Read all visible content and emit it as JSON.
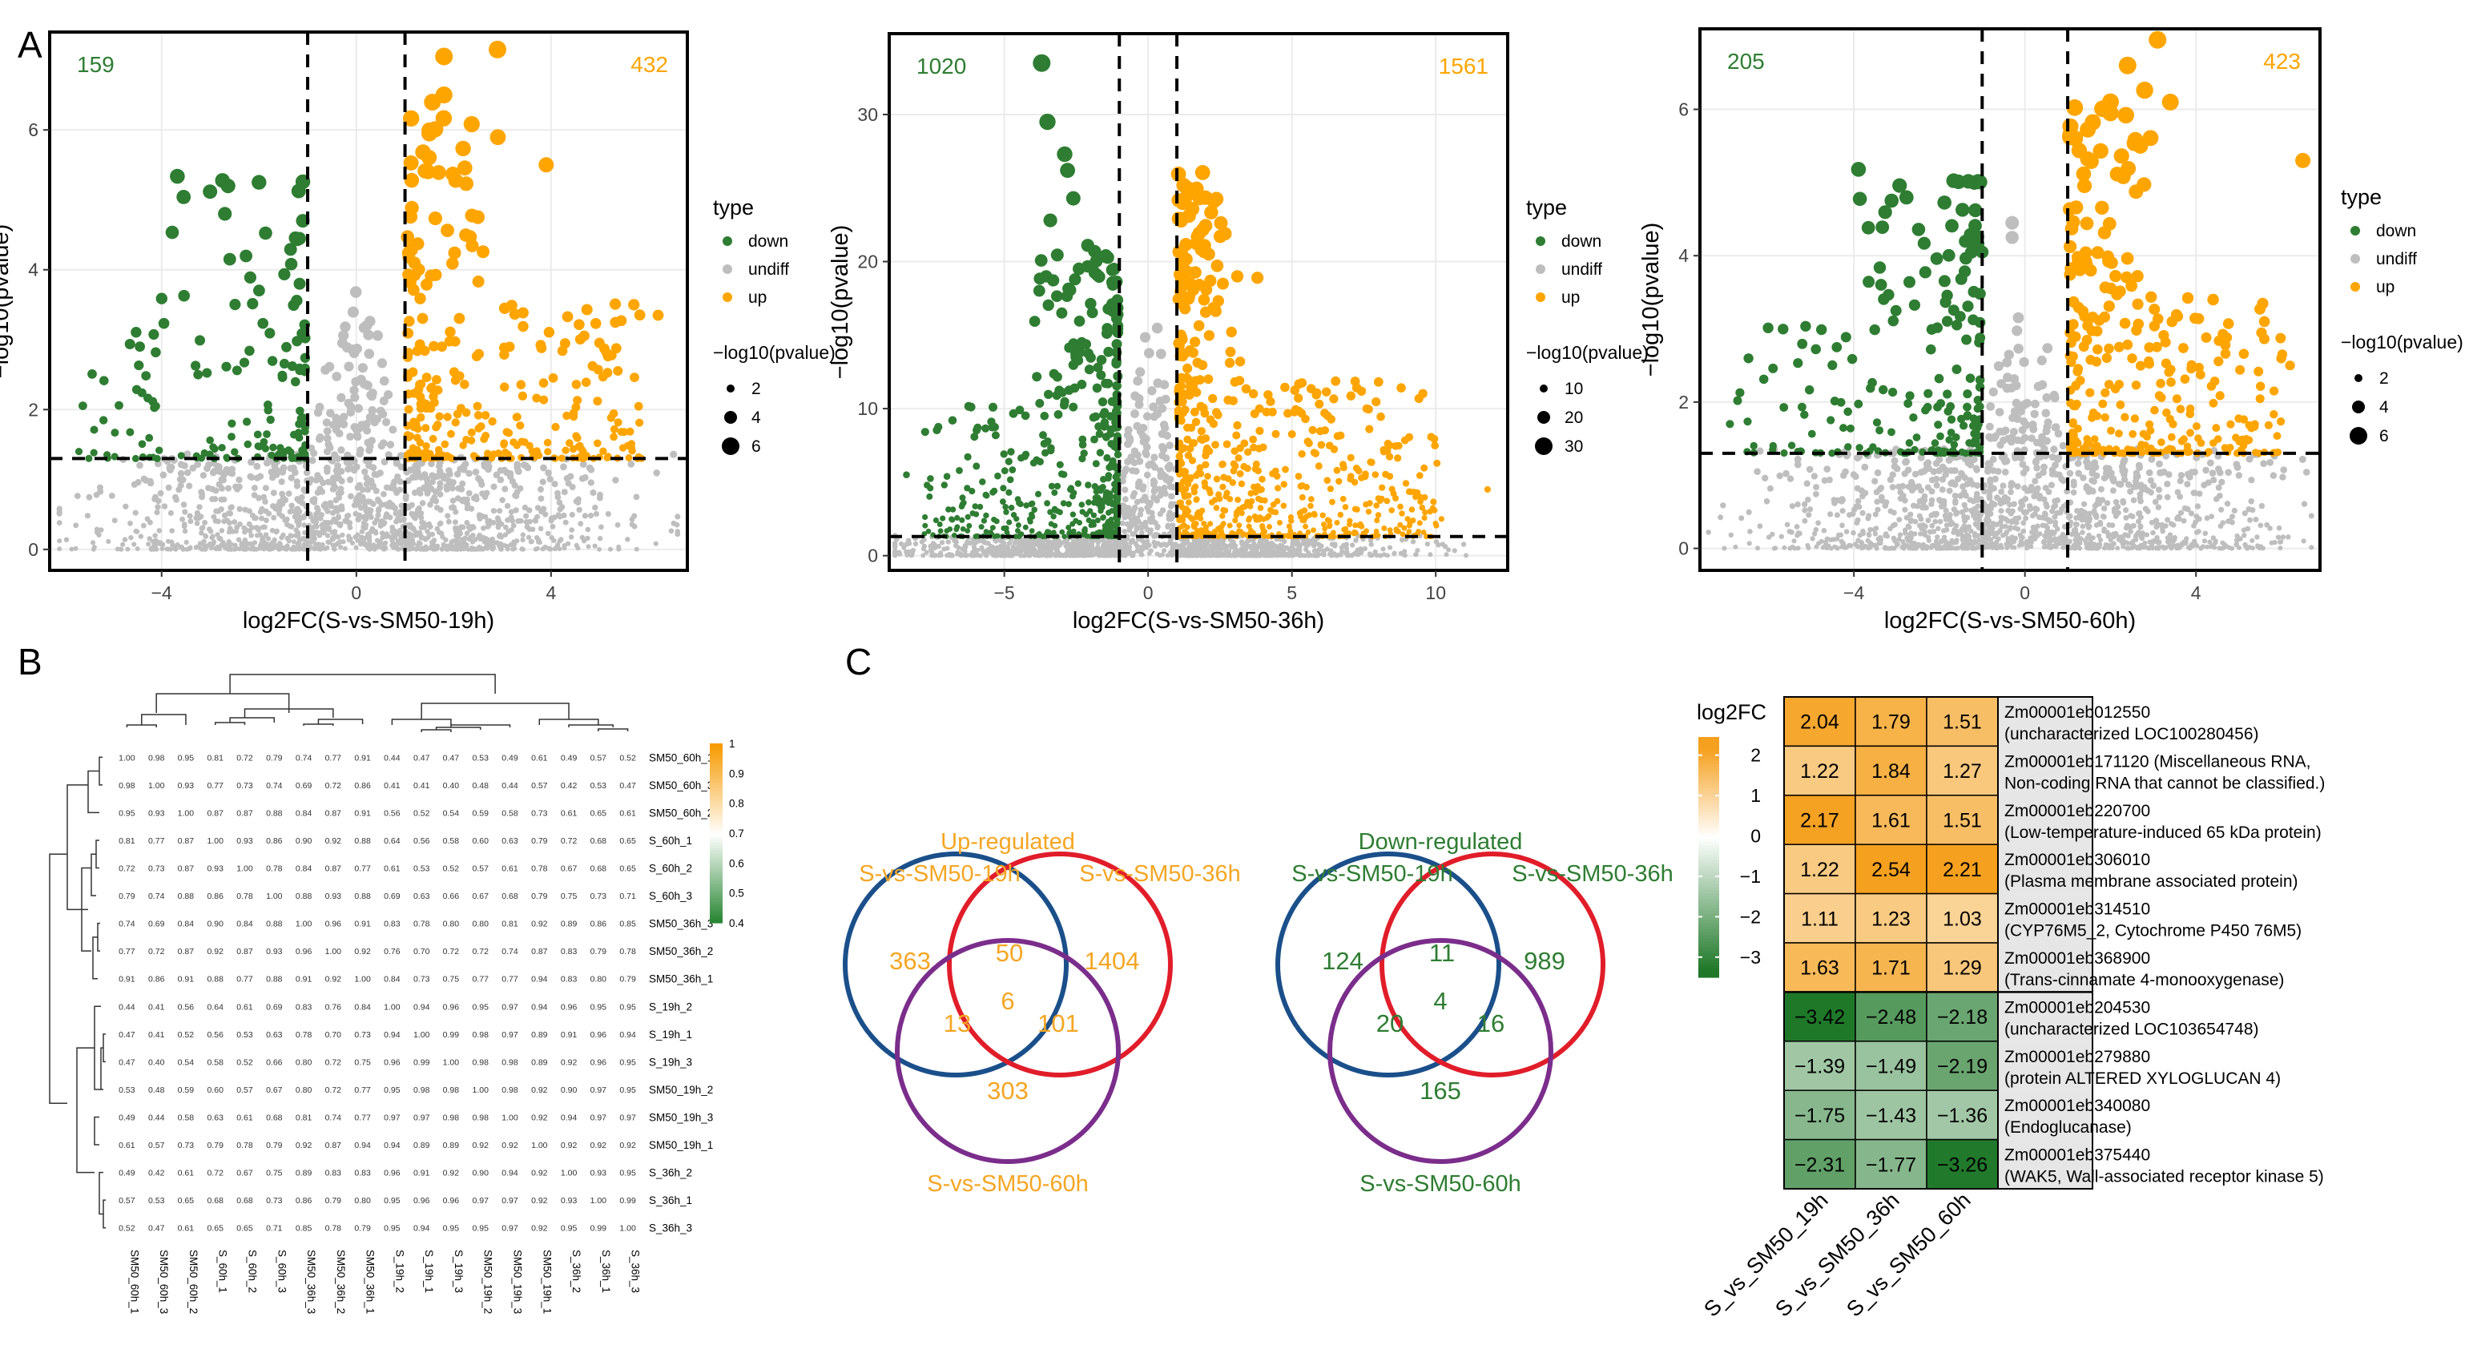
{
  "panel_labels": [
    "A",
    "B",
    "C"
  ],
  "colors": {
    "down": "#2e7d32",
    "undiff": "#bebebe",
    "up": "#ffa500",
    "venn_blue": "#1a4f8a",
    "venn_red": "#e11d2a",
    "venn_purple": "#7b2d8b",
    "up_text": "#f5a623",
    "down_text": "#2e7d32"
  },
  "chart_data": [
    {
      "type": "scatter",
      "id": "volcano_19h",
      "xlabel": "log2FC(S-vs-SM50-19h)",
      "ylabel": "−log10(pvalue)",
      "xlim": [
        -6.3,
        6.8
      ],
      "ylim": [
        -0.3,
        7.4
      ],
      "xticks": [
        -4,
        0,
        4
      ],
      "yticks": [
        0,
        2,
        4,
        6
      ],
      "xtick_labels": [
        "−4",
        "0",
        "4"
      ],
      "ytick_labels": [
        "0",
        "2",
        "4",
        "6"
      ],
      "down_count": "159",
      "up_count": "432",
      "fc_threshold": [
        -1,
        1
      ],
      "p_threshold": 1.3,
      "legend": {
        "type_title": "type",
        "types": [
          "down",
          "undiff",
          "up"
        ],
        "size_title": "−log10(pvalue)",
        "sizes": [
          "2",
          "4",
          "6"
        ]
      },
      "seed": 11,
      "n_down": 160,
      "n_up": 300,
      "n_grey": 1500,
      "highlights": [
        {
          "x": 2.9,
          "y": 7.15,
          "t": "up"
        },
        {
          "x": 1.8,
          "y": 7.05,
          "t": "up"
        },
        {
          "x": 1.8,
          "y": 6.5,
          "t": "up"
        },
        {
          "x": 3.9,
          "y": 5.5,
          "t": "up"
        },
        {
          "x": 1.5,
          "y": 5.95,
          "t": "up"
        },
        {
          "x": 5.7,
          "y": 3.5,
          "t": "up"
        },
        {
          "x": 6.2,
          "y": 3.35,
          "t": "up"
        },
        {
          "x": -2.0,
          "y": 5.25,
          "t": "down"
        },
        {
          "x": -1.1,
          "y": 4.7,
          "t": "down"
        },
        {
          "x": -2.7,
          "y": 4.8,
          "t": "down"
        },
        {
          "x": -2.6,
          "y": 4.15,
          "t": "down"
        },
        {
          "x": -5.7,
          "y": 1.4,
          "t": "down"
        }
      ]
    },
    {
      "type": "scatter",
      "id": "volcano_36h",
      "xlabel": "log2FC(S-vs-SM50-36h)",
      "ylabel": "−log10(pvalue)",
      "xlim": [
        -9,
        12.5
      ],
      "ylim": [
        -1,
        35.5
      ],
      "xticks": [
        -5,
        0,
        5,
        10
      ],
      "yticks": [
        0,
        10,
        20,
        30
      ],
      "xtick_labels": [
        "−5",
        "0",
        "5",
        "10"
      ],
      "ytick_labels": [
        "0",
        "10",
        "20",
        "30"
      ],
      "down_count": "1020",
      "up_count": "1561",
      "fc_threshold": [
        -1,
        1
      ],
      "p_threshold": 1.3,
      "legend": {
        "type_title": "type",
        "types": [
          "down",
          "undiff",
          "up"
        ],
        "size_title": "−log10(pvalue)",
        "sizes": [
          "10",
          "20",
          "30"
        ]
      },
      "seed": 23,
      "n_down": 500,
      "n_up": 650,
      "n_grey": 1500,
      "highlights": [
        {
          "x": -3.7,
          "y": 33.5,
          "t": "down"
        },
        {
          "x": -3.5,
          "y": 29.5,
          "t": "down"
        },
        {
          "x": -2.9,
          "y": 27.3,
          "t": "down"
        },
        {
          "x": -2.8,
          "y": 26.2,
          "t": "down"
        },
        {
          "x": -3.4,
          "y": 22.8,
          "t": "down"
        },
        {
          "x": -2.6,
          "y": 24.3,
          "t": "down"
        },
        {
          "x": -2.1,
          "y": 21.1,
          "t": "down"
        },
        {
          "x": -3.0,
          "y": 16.5,
          "t": "down"
        },
        {
          "x": -6.8,
          "y": 9.2,
          "t": "down"
        },
        {
          "x": -8.4,
          "y": 5.5,
          "t": "down"
        },
        {
          "x": 3.1,
          "y": 19.0,
          "t": "up"
        },
        {
          "x": 3.8,
          "y": 18.9,
          "t": "up"
        },
        {
          "x": 2.6,
          "y": 18.5,
          "t": "up"
        },
        {
          "x": 8.4,
          "y": 7.5,
          "t": "up"
        },
        {
          "x": 11.8,
          "y": 4.5,
          "t": "up"
        },
        {
          "x": 10.2,
          "y": 2.5,
          "t": "up"
        },
        {
          "x": 9.8,
          "y": 3.0,
          "t": "up"
        },
        {
          "x": 7.6,
          "y": 10.0,
          "t": "up"
        },
        {
          "x": 3.2,
          "y": 13.2,
          "t": "up"
        }
      ]
    },
    {
      "type": "scatter",
      "id": "volcano_60h",
      "xlabel": "log2FC(S-vs-SM50-60h)",
      "ylabel": "−log10(pvalue)",
      "xlim": [
        -7.6,
        6.9
      ],
      "ylim": [
        -0.3,
        7.1
      ],
      "xticks": [
        -4,
        0,
        4
      ],
      "yticks": [
        0,
        2,
        4,
        6
      ],
      "xtick_labels": [
        "−4",
        "0",
        "4"
      ],
      "ytick_labels": [
        "0",
        "2",
        "4",
        "6"
      ],
      "down_count": "205",
      "up_count": "423",
      "fc_threshold": [
        -1,
        1
      ],
      "p_threshold": 1.3,
      "legend": {
        "type_title": "type",
        "types": [
          "down",
          "undiff",
          "up"
        ],
        "size_title": "−log10(pvalue)",
        "sizes": [
          "2",
          "4",
          "6"
        ]
      },
      "seed": 37,
      "n_down": 200,
      "n_up": 320,
      "n_grey": 1500,
      "highlights": [
        {
          "x": 3.1,
          "y": 6.95,
          "t": "up"
        },
        {
          "x": 2.4,
          "y": 6.6,
          "t": "up"
        },
        {
          "x": 3.4,
          "y": 6.1,
          "t": "up"
        },
        {
          "x": 2.7,
          "y": 5.5,
          "t": "up"
        },
        {
          "x": 2.0,
          "y": 5.95,
          "t": "up"
        },
        {
          "x": 6.5,
          "y": 5.3,
          "t": "up"
        },
        {
          "x": 4.4,
          "y": 3.4,
          "t": "up"
        },
        {
          "x": 5.6,
          "y": 3.1,
          "t": "up"
        },
        {
          "x": 6.2,
          "y": 2.5,
          "t": "up"
        },
        {
          "x": -0.3,
          "y": 4.45,
          "t": "undiff"
        },
        {
          "x": -0.3,
          "y": 4.25,
          "t": "undiff"
        },
        {
          "x": -6.9,
          "y": 1.7,
          "t": "down"
        },
        {
          "x": -4.4,
          "y": 2.75,
          "t": "down"
        },
        {
          "x": -1.0,
          "y": 4.05,
          "t": "down"
        }
      ]
    },
    {
      "type": "heatmap",
      "id": "correlation",
      "samples": [
        "SM50_60h_1",
        "SM50_60h_3",
        "SM50_60h_2",
        "S_60h_1",
        "S_60h_2",
        "S_60h_3",
        "SM50_36h_3",
        "SM50_36h_2",
        "SM50_36h_1",
        "S_19h_2",
        "S_19h_1",
        "S_19h_3",
        "SM50_19h_2",
        "SM50_19h_3",
        "SM50_19h_1",
        "S_36h_2",
        "S_36h_1",
        "S_36h_3"
      ],
      "values": [
        [
          1.0,
          0.98,
          0.95,
          0.81,
          0.72,
          0.79,
          0.74,
          0.77,
          0.91,
          0.44,
          0.47,
          0.47,
          0.53,
          0.49,
          0.61,
          0.49,
          0.57,
          0.52
        ],
        [
          0.98,
          1.0,
          0.93,
          0.77,
          0.73,
          0.74,
          0.69,
          0.72,
          0.86,
          0.41,
          0.41,
          0.4,
          0.48,
          0.44,
          0.57,
          0.42,
          0.53,
          0.47
        ],
        [
          0.95,
          0.93,
          1.0,
          0.87,
          0.87,
          0.88,
          0.84,
          0.87,
          0.91,
          0.56,
          0.52,
          0.54,
          0.59,
          0.58,
          0.73,
          0.61,
          0.65,
          0.61
        ],
        [
          0.81,
          0.77,
          0.87,
          1.0,
          0.93,
          0.86,
          0.9,
          0.92,
          0.88,
          0.64,
          0.56,
          0.58,
          0.6,
          0.63,
          0.79,
          0.72,
          0.68,
          0.65
        ],
        [
          0.72,
          0.73,
          0.87,
          0.93,
          1.0,
          0.78,
          0.84,
          0.87,
          0.77,
          0.61,
          0.53,
          0.52,
          0.57,
          0.61,
          0.78,
          0.67,
          0.68,
          0.65
        ],
        [
          0.79,
          0.74,
          0.88,
          0.86,
          0.78,
          1.0,
          0.88,
          0.93,
          0.88,
          0.69,
          0.63,
          0.66,
          0.67,
          0.68,
          0.79,
          0.75,
          0.73,
          0.71
        ],
        [
          0.74,
          0.69,
          0.84,
          0.9,
          0.84,
          0.88,
          1.0,
          0.96,
          0.91,
          0.83,
          0.78,
          0.8,
          0.8,
          0.81,
          0.92,
          0.89,
          0.86,
          0.85
        ],
        [
          0.77,
          0.72,
          0.87,
          0.92,
          0.87,
          0.93,
          0.96,
          1.0,
          0.92,
          0.76,
          0.7,
          0.72,
          0.72,
          0.74,
          0.87,
          0.83,
          0.79,
          0.78
        ],
        [
          0.91,
          0.86,
          0.91,
          0.88,
          0.77,
          0.88,
          0.91,
          0.92,
          1.0,
          0.84,
          0.73,
          0.75,
          0.77,
          0.77,
          0.94,
          0.83,
          0.8,
          0.79
        ],
        [
          0.44,
          0.41,
          0.56,
          0.64,
          0.61,
          0.69,
          0.83,
          0.76,
          0.84,
          1.0,
          0.94,
          0.96,
          0.95,
          0.97,
          0.94,
          0.96,
          0.95,
          0.95
        ],
        [
          0.47,
          0.41,
          0.52,
          0.56,
          0.53,
          0.63,
          0.78,
          0.7,
          0.73,
          0.94,
          1.0,
          0.99,
          0.98,
          0.97,
          0.89,
          0.91,
          0.96,
          0.94
        ],
        [
          0.47,
          0.4,
          0.54,
          0.58,
          0.52,
          0.66,
          0.8,
          0.72,
          0.75,
          0.96,
          0.99,
          1.0,
          0.98,
          0.98,
          0.89,
          0.92,
          0.96,
          0.95
        ],
        [
          0.53,
          0.48,
          0.59,
          0.6,
          0.57,
          0.67,
          0.8,
          0.72,
          0.77,
          0.95,
          0.98,
          0.98,
          1.0,
          0.98,
          0.92,
          0.9,
          0.97,
          0.95
        ],
        [
          0.49,
          0.44,
          0.58,
          0.63,
          0.61,
          0.68,
          0.81,
          0.74,
          0.77,
          0.97,
          0.97,
          0.98,
          0.98,
          1.0,
          0.92,
          0.94,
          0.97,
          0.97
        ],
        [
          0.61,
          0.57,
          0.73,
          0.79,
          0.78,
          0.79,
          0.92,
          0.87,
          0.94,
          0.94,
          0.89,
          0.89,
          0.92,
          0.92,
          1.0,
          0.92,
          0.92,
          0.92
        ],
        [
          0.49,
          0.42,
          0.61,
          0.72,
          0.67,
          0.75,
          0.89,
          0.83,
          0.83,
          0.96,
          0.91,
          0.92,
          0.9,
          0.94,
          0.92,
          1.0,
          0.93,
          0.95
        ],
        [
          0.57,
          0.53,
          0.65,
          0.68,
          0.68,
          0.73,
          0.86,
          0.79,
          0.8,
          0.95,
          0.96,
          0.96,
          0.97,
          0.97,
          0.92,
          0.93,
          1.0,
          0.99
        ],
        [
          0.52,
          0.47,
          0.61,
          0.65,
          0.65,
          0.71,
          0.85,
          0.78,
          0.79,
          0.95,
          0.94,
          0.95,
          0.95,
          0.97,
          0.92,
          0.95,
          0.99,
          1.0
        ]
      ],
      "colorbar_ticks": [
        "1",
        "0.9",
        "0.8",
        "0.7",
        "0.6",
        "0.5",
        "0.4"
      ],
      "colorbar_values": [
        1,
        0.9,
        0.8,
        0.7,
        0.6,
        0.5,
        0.4
      ]
    },
    {
      "type": "venn",
      "id": "venn_up",
      "title": "Up-regulated",
      "labels": [
        "S-vs-SM50-19h",
        "S-vs-SM50-36h",
        "S-vs-SM50-60h"
      ],
      "counts": {
        "a": "363",
        "ab": "50",
        "b": "1404",
        "ac": "13",
        "abc": "6",
        "bc": "101",
        "c": "303"
      }
    },
    {
      "type": "venn",
      "id": "venn_down",
      "title": "Down-regulated",
      "labels": [
        "S-vs-SM50-19h",
        "S-vs-SM50-36h",
        "S-vs-SM50-60h"
      ],
      "counts": {
        "a": "124",
        "ab": "11",
        "b": "989",
        "ac": "20",
        "abc": "4",
        "bc": "16",
        "c": "165"
      }
    },
    {
      "type": "heatmap",
      "id": "log2fc_table",
      "legend_title": "log2FC",
      "legend_ticks": [
        "2",
        "1",
        "0",
        "−1",
        "−2",
        "−3"
      ],
      "legend_values": [
        2,
        1,
        0,
        -1,
        -2,
        -3
      ],
      "columns": [
        "S_vs_SM50_19h",
        "S_vs_SM50_36h",
        "S_vs_SM50_60h"
      ],
      "values": [
        [
          2.04,
          1.79,
          1.51
        ],
        [
          1.22,
          1.84,
          1.27
        ],
        [
          2.17,
          1.61,
          1.51
        ],
        [
          1.22,
          2.54,
          2.21
        ],
        [
          1.11,
          1.23,
          1.03
        ],
        [
          1.63,
          1.71,
          1.29
        ],
        [
          -3.42,
          -2.48,
          -2.18
        ],
        [
          -1.39,
          -1.49,
          -2.19
        ],
        [
          -1.75,
          -1.43,
          -1.36
        ],
        [
          -2.31,
          -1.77,
          -3.26
        ]
      ],
      "value_labels": [
        [
          "2.04",
          "1.79",
          "1.51"
        ],
        [
          "1.22",
          "1.84",
          "1.27"
        ],
        [
          "2.17",
          "1.61",
          "1.51"
        ],
        [
          "1.22",
          "2.54",
          "2.21"
        ],
        [
          "1.11",
          "1.23",
          "1.03"
        ],
        [
          "1.63",
          "1.71",
          "1.29"
        ],
        [
          "−3.42",
          "−2.48",
          "−2.18"
        ],
        [
          "−1.39",
          "−1.49",
          "−2.19"
        ],
        [
          "−1.75",
          "−1.43",
          "−1.36"
        ],
        [
          "−2.31",
          "−1.77",
          "−3.26"
        ]
      ],
      "genes": [
        {
          "id": "Zm00001eb012550",
          "desc": "(uncharacterized LOC100280456)"
        },
        {
          "id": "Zm00001eb171120 (Miscellaneous RNA,",
          "desc": "Non-coding RNA that cannot be classified.)"
        },
        {
          "id": "Zm00001eb220700",
          "desc": "(Low-temperature-induced 65 kDa protein)"
        },
        {
          "id": "Zm00001eb306010",
          "desc": "(Plasma membrane associated protein)"
        },
        {
          "id": "Zm00001eb314510",
          "desc": "(CYP76M5_2, Cytochrome P450 76M5)"
        },
        {
          "id": "Zm00001eb368900",
          "desc": "(Trans-cinnamate 4-monooxygenase)"
        },
        {
          "id": "Zm00001eb204530",
          "desc": "(uncharacterized LOC103654748)"
        },
        {
          "id": "Zm00001eb279880",
          "desc": "(protein ALTERED XYLOGLUCAN 4)"
        },
        {
          "id": "Zm00001eb340080",
          "desc": "(Endoglucanase)"
        },
        {
          "id": "Zm00001eb375440",
          "desc": "(WAK5, Wall-associated receptor kinase 5)"
        }
      ]
    }
  ]
}
